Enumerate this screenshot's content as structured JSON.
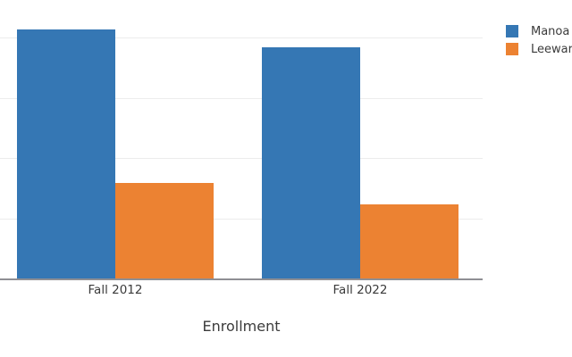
{
  "chart_data": {
    "type": "bar",
    "categories": [
      "Fall 2012",
      "Fall 2022"
    ],
    "series": [
      {
        "name": "Manoa",
        "color": "#3577b4",
        "values": [
          20650,
          19200
        ]
      },
      {
        "name": "Leeward",
        "color": "#ec8232",
        "values": [
          7950,
          6175
        ]
      }
    ],
    "title": "",
    "xlabel": "Enrollment",
    "ylabel": "",
    "ylim": [
      0,
      23100
    ],
    "gridlines": [
      5000,
      10000,
      15000,
      20000
    ],
    "grid": true,
    "legend_position": "top-right-outside",
    "y_tick_labels_visible": false,
    "axis_color": "#8f8f94",
    "gridline_color": "#ececec",
    "text_color": "#3b3b3b"
  }
}
